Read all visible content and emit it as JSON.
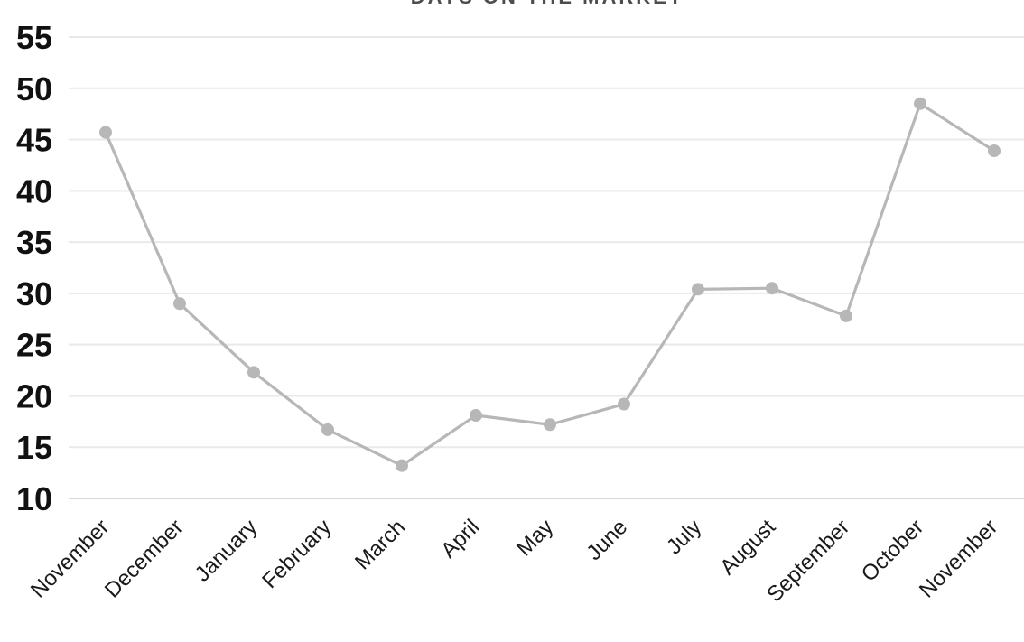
{
  "chart_data": {
    "type": "line",
    "title": "DAYS ON THE MARKET",
    "categories": [
      "November",
      "December",
      "January",
      "February",
      "March",
      "April",
      "May",
      "June",
      "July",
      "August",
      "September",
      "October",
      "November"
    ],
    "values": [
      45.7,
      29.0,
      22.3,
      16.7,
      13.2,
      18.1,
      17.2,
      19.2,
      30.4,
      30.5,
      27.8,
      48.5,
      43.9
    ],
    "xlabel": "",
    "ylabel": "",
    "ylim": [
      10,
      55
    ],
    "yticks": [
      55,
      50,
      45,
      40,
      35,
      30,
      25,
      20,
      15,
      10
    ],
    "grid": true,
    "legend": "none",
    "colors": {
      "line": "#b7b7b7",
      "marker": "#b7b7b7",
      "gridline": "#e9e9e9",
      "axis_line": "#d9d9d9",
      "y_tick_label": "#111111",
      "x_tick_label": "#1a1a1a",
      "title": "#4d4d4d"
    }
  }
}
